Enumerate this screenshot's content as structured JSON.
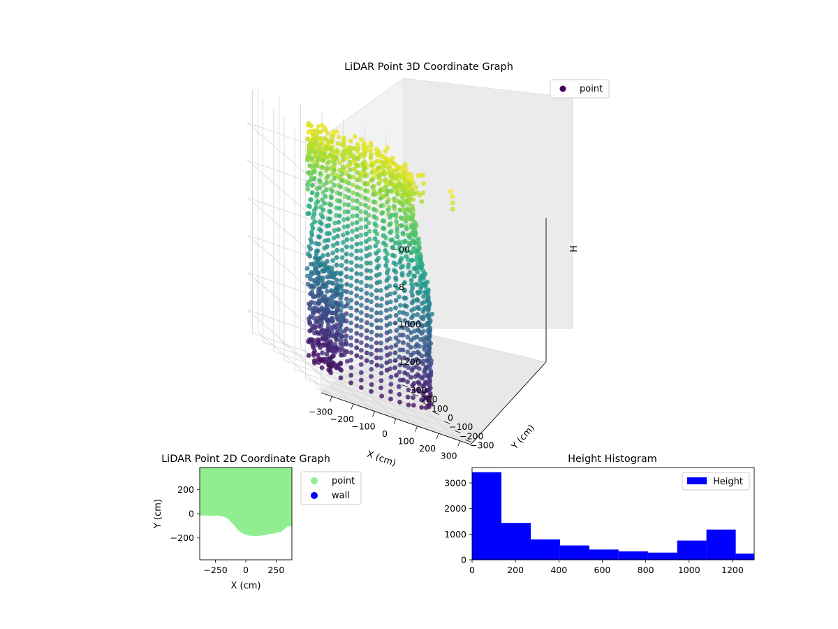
{
  "chart_data": [
    {
      "type": "scatter",
      "subtype": "3d",
      "title": "LiDAR Point 3D Coordinate Graph",
      "xlabel": "X (cm)",
      "ylabel": "Y (cm)",
      "zlabel": "H",
      "x_ticks": [
        "−300",
        "−200",
        "−100",
        "0",
        "100",
        "200",
        "300"
      ],
      "y_ticks": [
        "−300",
        "−200",
        "−100",
        "0",
        "100",
        "200",
        "300"
      ],
      "z_ticks": [
        "1200",
        "1000",
        "800",
        "600"
      ],
      "z_tick_display": [
        "1200",
        "1000",
        "8",
        "00"
      ],
      "xlim": [
        -350,
        350
      ],
      "ylim": [
        -350,
        350
      ],
      "zlim": [
        0,
        1300
      ],
      "z_inverted": true,
      "colormap": "viridis",
      "legend": {
        "entries": [
          {
            "name": "point",
            "color": "#440154"
          }
        ],
        "placement": "top-right"
      },
      "shape": "open-top cylindrical shell of points, radius ~300 cm, heights 0 to ~1250 cm",
      "grid": true
    },
    {
      "type": "scatter",
      "title": "LiDAR Point 2D Coordinate Graph",
      "xlabel": "X (cm)",
      "ylabel": "Y (cm)",
      "xlim": [
        -380,
        380
      ],
      "ylim": [
        -380,
        380
      ],
      "x_ticks": [
        "−250",
        "0",
        "250"
      ],
      "y_ticks": [
        "−200",
        "0",
        "200"
      ],
      "series": [
        {
          "name": "point",
          "color": "#90ee90"
        },
        {
          "name": "wall",
          "color": "#0000ff"
        }
      ],
      "region_outline": [
        [
          -380,
          -15
        ],
        [
          -330,
          -15
        ],
        [
          -280,
          -18
        ],
        [
          -240,
          -15
        ],
        [
          -200,
          -20
        ],
        [
          -150,
          -40
        ],
        [
          -100,
          -90
        ],
        [
          -60,
          -140
        ],
        [
          -20,
          -165
        ],
        [
          20,
          -180
        ],
        [
          80,
          -185
        ],
        [
          140,
          -180
        ],
        [
          180,
          -170
        ],
        [
          220,
          -165
        ],
        [
          260,
          -155
        ],
        [
          290,
          -150
        ],
        [
          320,
          -125
        ],
        [
          340,
          -105
        ],
        [
          380,
          -105
        ]
      ],
      "legend_placement": "outside right",
      "grid": false
    },
    {
      "type": "bar",
      "subtype": "histogram",
      "title": "Height Histogram",
      "xlabel": "",
      "ylabel": "",
      "bins": [
        [
          0,
          135
        ],
        [
          135,
          270
        ],
        [
          270,
          405
        ],
        [
          405,
          540
        ],
        [
          540,
          675
        ],
        [
          675,
          810
        ],
        [
          810,
          945
        ],
        [
          945,
          1080
        ],
        [
          1080,
          1215
        ],
        [
          1215,
          1350
        ]
      ],
      "values": [
        3420,
        1440,
        800,
        560,
        400,
        330,
        280,
        750,
        1180,
        240
      ],
      "xlim": [
        0,
        1300
      ],
      "ylim": [
        0,
        3600
      ],
      "x_ticks": [
        "0",
        "200",
        "400",
        "600",
        "800",
        "1000",
        "1200"
      ],
      "y_ticks": [
        "0",
        "1000",
        "2000",
        "3000"
      ],
      "series": [
        {
          "name": "Height",
          "color": "#0000ff"
        }
      ],
      "legend_placement": "top-right",
      "grid": false
    }
  ]
}
